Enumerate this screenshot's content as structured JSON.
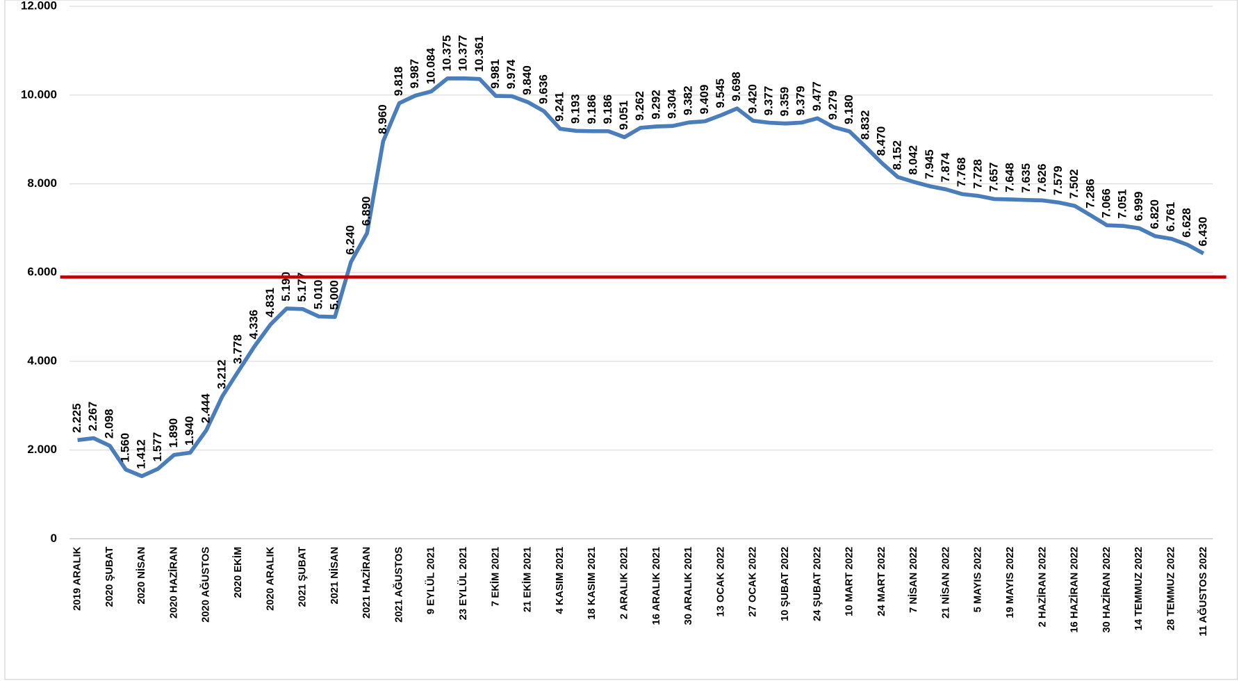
{
  "chart_data": {
    "type": "line",
    "categories": [
      "2019 ARALIK",
      null,
      "2020 ŞUBAT",
      null,
      "2020 NİSAN",
      null,
      "2020 HAZİRAN",
      null,
      "2020 AĞUSTOS",
      null,
      "2020 EKİM",
      null,
      "2020 ARALIK",
      null,
      "2021 ŞUBAT",
      null,
      "2021 NİSAN",
      null,
      "2021 HAZİRAN",
      null,
      "2021 AĞUSTOS",
      null,
      "9 EYLÜL 2021",
      null,
      "23 EYLÜL 2021",
      null,
      "7 EKİM 2021",
      null,
      "21 EKİM 2021",
      null,
      "4 KASIM 2021",
      null,
      "18 KASIM 2021",
      null,
      "2 ARALIK 2021",
      null,
      "16 ARALIK 2021",
      null,
      "30 ARALIK 2021",
      null,
      "13 OCAK 2022",
      null,
      "27 OCAK 2022",
      null,
      "10 ŞUBAT 2022",
      null,
      "24 ŞUBAT 2022",
      null,
      "10 MART 2022",
      null,
      "24 MART 2022",
      null,
      "7 NİSAN 2022",
      null,
      "21 NİSAN 2022",
      null,
      "5 MAYIS 2022",
      null,
      "19 MAYIS 2022",
      null,
      "2 HAZİRAN 2022",
      null,
      "16 HAZİRAN 2022",
      null,
      "30 HAZİRAN 2022",
      null,
      "14 TEMMUZ 2022",
      null,
      "28 TEMMUZ 2022",
      null,
      "11 AĞUSTOS 2022"
    ],
    "series": [
      {
        "color": "#4a7ebb",
        "values": [
          2225,
          2267,
          2098,
          1560,
          1412,
          1577,
          1890,
          1940,
          2444,
          3212,
          3778,
          4336,
          4831,
          5190,
          5177,
          5010,
          5000,
          6240,
          6890,
          8960,
          9818,
          9987,
          10084,
          10375,
          10377,
          10361,
          9981,
          9974,
          9840,
          9636,
          9241,
          9193,
          9186,
          9186,
          9051,
          9262,
          9292,
          9304,
          9382,
          9409,
          9545,
          9698,
          9420,
          9377,
          9359,
          9379,
          9477,
          9279,
          9180,
          8832,
          8470,
          8152,
          8042,
          7945,
          7874,
          7768,
          7728,
          7657,
          7648,
          7635,
          7626,
          7579,
          7502,
          7286,
          7066,
          7051,
          6999,
          6820,
          6761,
          6628,
          6430
        ],
        "value_labels": [
          "2.225",
          "2.267",
          "2.098",
          "1.560",
          "1.412",
          "1.577",
          "1.890",
          "1.940",
          "2.444",
          "3.212",
          "3.778",
          "4.336",
          "4.831",
          "5.190",
          "5.177",
          "5.010",
          "5.000",
          "6.240",
          "6.890",
          "8.960",
          "9.818",
          "9.987",
          "10.084",
          "10.375",
          "10.377",
          "10.361",
          "9.981",
          "9.974",
          "9.840",
          "9.636",
          "9.241",
          "9.193",
          "9.186",
          "9.186",
          "9.051",
          "9.262",
          "9.292",
          "9.304",
          "9.382",
          "9.409",
          "9.545",
          "9.698",
          "9.420",
          "9.377",
          "9.359",
          "9.379",
          "9.477",
          "9.279",
          "9.180",
          "8.832",
          "8.470",
          "8.152",
          "8.042",
          "7.945",
          "7.874",
          "7.768",
          "7.728",
          "7.657",
          "7.648",
          "7.635",
          "7.626",
          "7.579",
          "7.502",
          "7.286",
          "7.066",
          "7.051",
          "6.999",
          "6.820",
          "6.761",
          "6.628",
          "6.430"
        ]
      }
    ],
    "ylim": [
      0,
      12000
    ],
    "yticks": [
      0,
      {
        "value": 2000,
        "label": "2.000"
      },
      {
        "value": 4000,
        "label": "4.000"
      },
      {
        "value": 6000,
        "label": "6.000"
      },
      {
        "value": 8000,
        "label": "8.000"
      },
      {
        "value": 10000,
        "label": "10.000"
      },
      {
        "value": 12000,
        "label": "12.000"
      }
    ],
    "grid": true,
    "reference_line": {
      "value": 5900,
      "color": "#c00000"
    }
  }
}
